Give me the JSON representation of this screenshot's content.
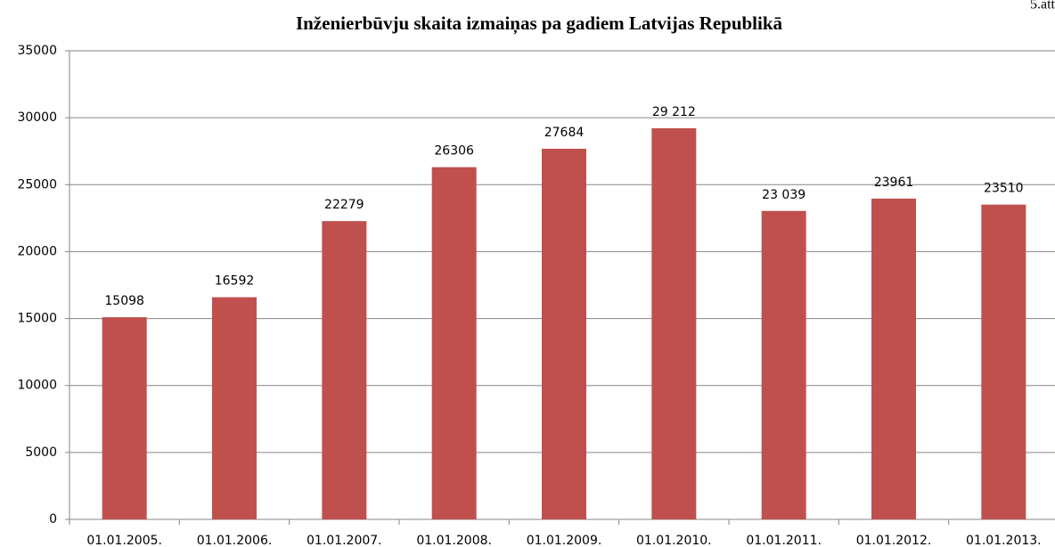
{
  "chart_data": {
    "type": "bar",
    "title": "Inženierbūvju skaita izmaiņas pa gadiem Latvijas Republikā",
    "annotation": "5.att",
    "categories": [
      "01.01.2005.",
      "01.01.2006.",
      "01.01.2007.",
      "01.01.2008.",
      "01.01.2009.",
      "01.01.2010.",
      "01.01.2011.",
      "01.01.2012.",
      "01.01.2013."
    ],
    "values": [
      15098,
      16592,
      22279,
      26306,
      27684,
      29212,
      23039,
      23961,
      23510
    ],
    "value_labels": [
      "15098",
      "16592",
      "22279",
      "26306",
      "27684",
      "29 212",
      "23 039",
      "23961",
      "23510"
    ],
    "color": "#c0504d",
    "ylim": [
      0,
      35000
    ],
    "yticks": [
      0,
      5000,
      10000,
      15000,
      20000,
      25000,
      30000,
      35000
    ],
    "grid": true
  }
}
